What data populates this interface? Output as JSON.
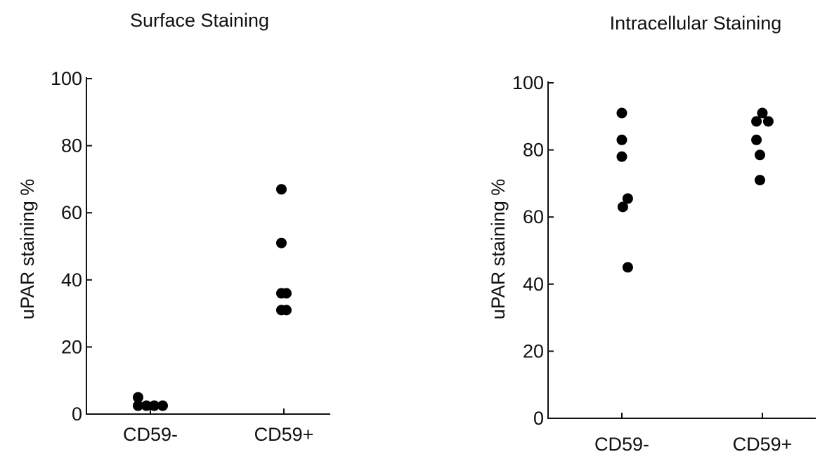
{
  "chart_data": [
    {
      "type": "scatter",
      "title": "Surface Staining",
      "xlabel": "",
      "ylabel": "uPAR staining %",
      "ylim": [
        0,
        100
      ],
      "yticks": [
        0,
        20,
        40,
        60,
        80,
        100
      ],
      "categories": [
        "CD59-",
        "CD59+"
      ],
      "grid": false,
      "points": [
        {
          "category": "CD59-",
          "offset": -0.25,
          "y": 5
        },
        {
          "category": "CD59-",
          "offset": -0.25,
          "y": 2.5
        },
        {
          "category": "CD59-",
          "offset": -0.08,
          "y": 2.5
        },
        {
          "category": "CD59-",
          "offset": 0.08,
          "y": 2.5
        },
        {
          "category": "CD59-",
          "offset": 0.25,
          "y": 2.5
        },
        {
          "category": "CD59+",
          "offset": -0.05,
          "y": 67
        },
        {
          "category": "CD59+",
          "offset": -0.05,
          "y": 51
        },
        {
          "category": "CD59+",
          "offset": -0.05,
          "y": 36
        },
        {
          "category": "CD59+",
          "offset": 0.05,
          "y": 36
        },
        {
          "category": "CD59+",
          "offset": -0.05,
          "y": 31
        },
        {
          "category": "CD59+",
          "offset": 0.05,
          "y": 31
        }
      ]
    },
    {
      "type": "scatter",
      "title": "Intracellular Staining",
      "xlabel": "",
      "ylabel": "uPAR staining %",
      "ylim": [
        0,
        100
      ],
      "yticks": [
        0,
        20,
        40,
        60,
        80,
        100
      ],
      "categories": [
        "CD59-",
        "CD59+"
      ],
      "grid": false,
      "points": [
        {
          "category": "CD59-",
          "offset": 0.0,
          "y": 91
        },
        {
          "category": "CD59-",
          "offset": 0.0,
          "y": 83
        },
        {
          "category": "CD59-",
          "offset": 0.0,
          "y": 78
        },
        {
          "category": "CD59-",
          "offset": 0.12,
          "y": 65.5
        },
        {
          "category": "CD59-",
          "offset": 0.02,
          "y": 63
        },
        {
          "category": "CD59-",
          "offset": 0.12,
          "y": 45
        },
        {
          "category": "CD59+",
          "offset": -0.12,
          "y": 88.5
        },
        {
          "category": "CD59+",
          "offset": 0.0,
          "y": 91
        },
        {
          "category": "CD59+",
          "offset": 0.12,
          "y": 88.5
        },
        {
          "category": "CD59+",
          "offset": -0.12,
          "y": 83
        },
        {
          "category": "CD59+",
          "offset": -0.05,
          "y": 78.5
        },
        {
          "category": "CD59+",
          "offset": -0.05,
          "y": 71
        }
      ]
    }
  ]
}
